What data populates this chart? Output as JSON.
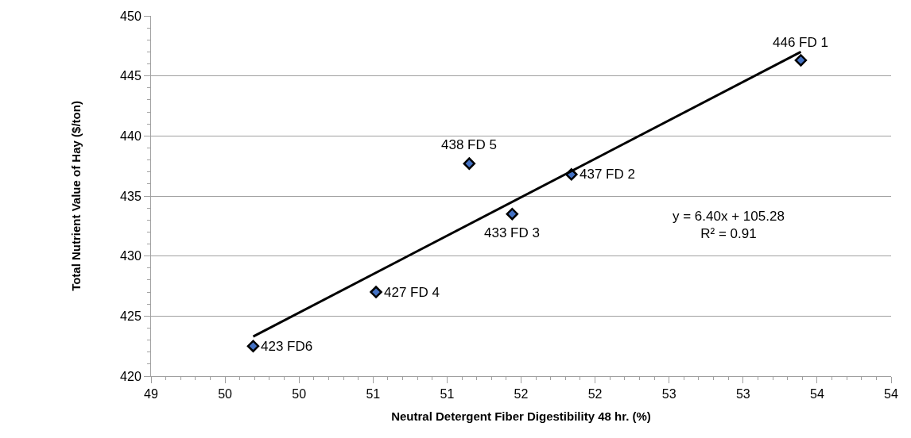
{
  "chart_data": {
    "type": "scatter",
    "xlabel": "Neutral Detergent Fiber Digestibility 48 hr. (%)",
    "ylabel": "Total Nutrient Value of Hay ($/ton)",
    "series": [
      {
        "color": "#000000",
        "marker": "diamond",
        "x": [
          53.39,
          51.84,
          51.44,
          50.52,
          51.15,
          49.69
        ],
        "values": [
          446.3,
          436.8,
          433.5,
          427.0,
          437.7,
          422.5
        ]
      },
      {
        "type": "line",
        "color": "#000000",
        "marker": "none",
        "line_style": "solid",
        "x": [
          49.69,
          53.39
        ],
        "values": [
          423.3,
          447.0
        ]
      }
    ],
    "xlim": [
      49,
      54
    ],
    "xticks": [
      49,
      {
        "value": 49.5,
        "label": "50"
      },
      50,
      {
        "value": 50.5,
        "label": "51"
      },
      51,
      {
        "value": 51.5,
        "label": "52"
      },
      52,
      {
        "value": 52.5,
        "label": "53"
      },
      53,
      {
        "value": 53.5,
        "label": "54"
      },
      54
    ],
    "ylim": [
      420,
      450
    ],
    "yticks": [
      420,
      425,
      430,
      435,
      440,
      445,
      450
    ],
    "grid": "y",
    "annotations": [
      {
        "text": "446 FD 1",
        "x": 53.39,
        "y": 446.3
      },
      {
        "text": "437 FD 2",
        "x": 51.84,
        "y": 436.8
      },
      {
        "text": "433 FD 3",
        "x": 51.44,
        "y": 433.5
      },
      {
        "text": "427 FD 4",
        "x": 50.52,
        "y": 427.0
      },
      {
        "text": "438 FD 5",
        "x": 51.15,
        "y": 437.7
      },
      {
        "text": "423 FD6",
        "x": 49.69,
        "y": 422.5
      },
      "y = 6.40x + 105.28\nR² = 0.91"
    ]
  }
}
